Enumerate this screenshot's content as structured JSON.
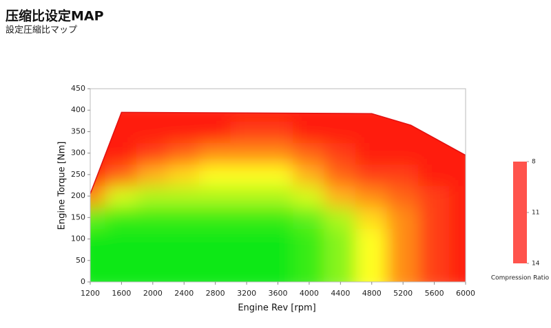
{
  "title": "压缩比设定MAP",
  "subtitle": "設定圧縮比マップ",
  "chart_data": {
    "type": "heatmap",
    "xlabel": "Engine Rev [rpm]",
    "ylabel": "Engine Torque [Nm]",
    "x": [
      1200,
      1600,
      2000,
      2400,
      2800,
      3200,
      3600,
      4000,
      4400,
      4800,
      5200,
      5600,
      6000
    ],
    "y": [
      0,
      50,
      100,
      150,
      200,
      250,
      300,
      350,
      400
    ],
    "z": [
      [
        14,
        14,
        14,
        14,
        14,
        14,
        14,
        13.5,
        12.5,
        11,
        9.5,
        8.5,
        8
      ],
      [
        14,
        14,
        14,
        14,
        14,
        14,
        14,
        13.5,
        12.5,
        11,
        9.5,
        8.5,
        8
      ],
      [
        14,
        14,
        14,
        14,
        14,
        14,
        14,
        13.5,
        12.5,
        11,
        9.5,
        8.5,
        8
      ],
      [
        13,
        13.5,
        13.5,
        13.5,
        13.5,
        13.5,
        13.5,
        13,
        12,
        10.5,
        9.5,
        8.5,
        8
      ],
      [
        9.5,
        11.5,
        12,
        12,
        12,
        12,
        12,
        11.5,
        10,
        9.5,
        9,
        8.5,
        8
      ],
      [
        8,
        9,
        10,
        10.5,
        11,
        11,
        11,
        10,
        9,
        8.5,
        8.5,
        8,
        8
      ],
      [
        8,
        8,
        8.5,
        9,
        9.5,
        9.5,
        9.5,
        9,
        8.5,
        8,
        8,
        8,
        8
      ],
      [
        8,
        8,
        8,
        8,
        8,
        8.5,
        8.5,
        8,
        8,
        8,
        8,
        8,
        8
      ],
      [
        8,
        8,
        8,
        8,
        8,
        8,
        8,
        8,
        8,
        8,
        8,
        8,
        8
      ]
    ],
    "envelope": {
      "x": [
        1200,
        1600,
        4800,
        5300,
        5600,
        6000
      ],
      "y": [
        205,
        395,
        392,
        365,
        335,
        295
      ]
    },
    "xlim": [
      1200,
      6000
    ],
    "xticks": [
      1200,
      1600,
      2000,
      2400,
      2800,
      3200,
      3600,
      4000,
      4400,
      4800,
      5200,
      5600,
      6000
    ],
    "ylim": [
      0,
      450
    ],
    "yticks": [
      0,
      50,
      100,
      150,
      200,
      250,
      300,
      350,
      400,
      450
    ],
    "colorscale": [
      {
        "value": 8,
        "color": "#ff1a10"
      },
      {
        "value": 11,
        "color": "#ffff20"
      },
      {
        "value": 14,
        "color": "#10e818"
      }
    ],
    "colorbar_label": "Compression  Ratio",
    "colorbar_ticks": [
      8,
      11,
      14
    ]
  }
}
